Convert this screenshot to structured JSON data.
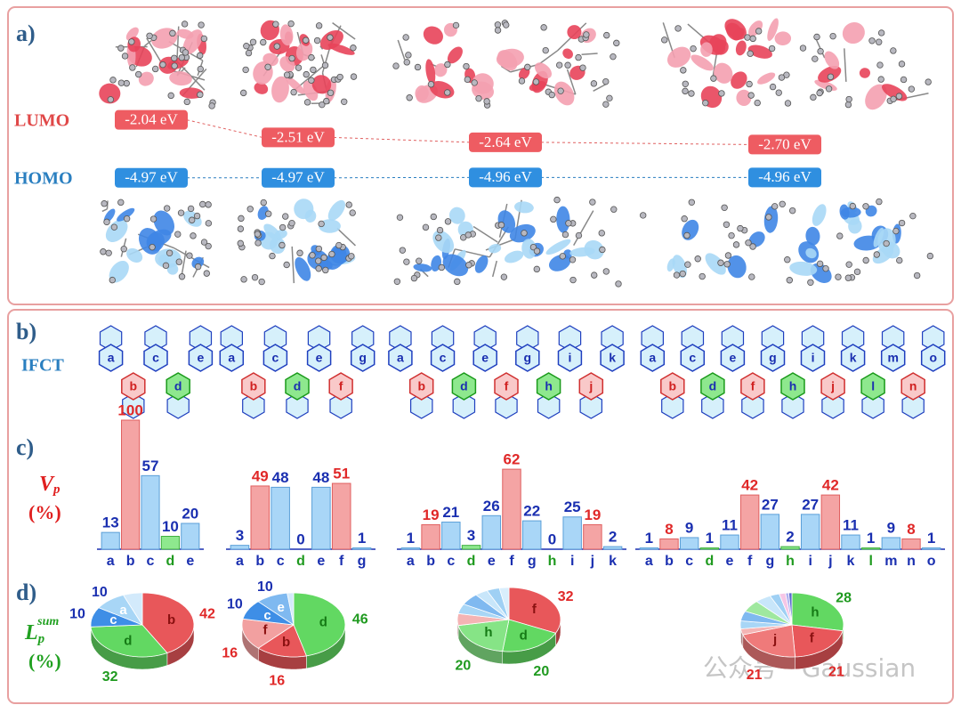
{
  "figure": {
    "panel_a": {
      "label": "a)",
      "lumo_label": "LUMO",
      "homo_label": "HOMO",
      "lumo": {
        "values": [
          -2.04,
          -2.51,
          -2.64,
          -2.7
        ],
        "value_labels": [
          "-2.04 eV",
          "-2.51 eV",
          "-2.64 eV",
          "-2.70 eV"
        ]
      },
      "homo": {
        "values": [
          -4.97,
          -4.97,
          -4.96,
          -4.96
        ],
        "value_labels": [
          "-4.97 eV",
          "-4.97 eV",
          "-4.96 eV",
          "-4.96 eV"
        ]
      }
    },
    "panel_b": {
      "label": "b)",
      "row_label": "IFCT"
    },
    "panel_c": {
      "label": "c)",
      "y_label": "V",
      "y_label_sub": "p",
      "y_unit": "(%)"
    },
    "panel_d": {
      "label": "d)",
      "y_label": "L",
      "y_label_sub": "p",
      "y_label_sup": "sum",
      "y_unit": "(%)"
    },
    "watermark": "公众号 · Gaussian"
  },
  "chart_data": [
    {
      "type": "bar",
      "categories": [
        "a",
        "b",
        "c",
        "d",
        "e"
      ],
      "values": [
        13,
        100,
        57,
        10,
        20
      ],
      "colors": [
        "#a9d6f7",
        "#f4a4a4",
        "#a9d6f7",
        "#8ee88e",
        "#a9d6f7"
      ]
    },
    {
      "type": "bar",
      "categories": [
        "a",
        "b",
        "c",
        "d",
        "e",
        "f",
        "g"
      ],
      "values": [
        3,
        49,
        48,
        0,
        48,
        51,
        1
      ],
      "colors": [
        "#a9d6f7",
        "#f4a4a4",
        "#a9d6f7",
        "#8ee88e",
        "#a9d6f7",
        "#f4a4a4",
        "#a9d6f7"
      ]
    },
    {
      "type": "bar",
      "categories": [
        "a",
        "b",
        "c",
        "d",
        "e",
        "f",
        "g",
        "h",
        "i",
        "j",
        "k"
      ],
      "values": [
        1,
        19,
        21,
        3,
        26,
        62,
        22,
        0,
        25,
        19,
        2
      ],
      "colors": [
        "#a9d6f7",
        "#f4a4a4",
        "#a9d6f7",
        "#8ee88e",
        "#a9d6f7",
        "#f4a4a4",
        "#a9d6f7",
        "#8ee88e",
        "#a9d6f7",
        "#f4a4a4",
        "#a9d6f7"
      ]
    },
    {
      "type": "bar",
      "categories": [
        "a",
        "b",
        "c",
        "d",
        "e",
        "f",
        "g",
        "h",
        "i",
        "j",
        "k",
        "l",
        "m",
        "n",
        "o"
      ],
      "values": [
        1,
        8,
        9,
        1,
        11,
        42,
        27,
        2,
        27,
        42,
        11,
        1,
        9,
        8,
        1
      ],
      "colors": [
        "#a9d6f7",
        "#f4a4a4",
        "#a9d6f7",
        "#8ee88e",
        "#a9d6f7",
        "#f4a4a4",
        "#a9d6f7",
        "#8ee88e",
        "#a9d6f7",
        "#f4a4a4",
        "#a9d6f7",
        "#8ee88e",
        "#a9d6f7",
        "#f4a4a4",
        "#a9d6f7"
      ]
    },
    {
      "type": "pie",
      "categories": [
        "b",
        "d",
        "c",
        "a",
        null
      ],
      "values": [
        42,
        32,
        10,
        10,
        6
      ],
      "value_labels": [
        "42",
        "32",
        "10",
        "10",
        null
      ],
      "colors": [
        "#e8575a",
        "#62d862",
        "#3e8ee6",
        "#a8d6f6",
        "#d3eafb"
      ]
    },
    {
      "type": "pie",
      "categories": [
        "d",
        "b",
        "f",
        "c",
        "e",
        null
      ],
      "values": [
        46,
        16,
        16,
        10,
        10,
        2
      ],
      "value_labels": [
        "46",
        "16",
        "16",
        "10",
        "10",
        null
      ],
      "colors": [
        "#62d862",
        "#e8575a",
        "#f2a0a0",
        "#3e8ee6",
        "#7fb9f0",
        "#d3eafb"
      ]
    },
    {
      "type": "pie",
      "categories": [
        "f",
        "d",
        "h",
        null,
        null,
        null,
        null,
        null,
        null
      ],
      "values": [
        32,
        20,
        20,
        6,
        5,
        6,
        4,
        4,
        3
      ],
      "value_labels": [
        "32",
        "20",
        "20",
        null,
        null,
        null,
        null,
        null,
        null
      ],
      "colors": [
        "#e8575a",
        "#62d862",
        "#86e486",
        "#f4b4b4",
        "#a8d6f6",
        "#7fb9f0",
        "#c8e6fa",
        "#9fd0f4",
        "#d9eefc"
      ]
    },
    {
      "type": "pie",
      "categories": [
        "h",
        "f",
        "j",
        null,
        null,
        null,
        null,
        null,
        null,
        null,
        null,
        null
      ],
      "values": [
        28,
        21,
        21,
        3,
        4,
        5,
        6,
        5,
        3,
        2,
        1,
        1
      ],
      "value_labels": [
        "28",
        "21",
        "21",
        null,
        null,
        null,
        null,
        null,
        null,
        null,
        null,
        null
      ],
      "colors": [
        "#62d862",
        "#e8575a",
        "#ef7a7a",
        "#f4b4b4",
        "#a8d6f6",
        "#7fb9f0",
        "#9fe89f",
        "#c8e6fa",
        "#9fd0f4",
        "#f6c6e6",
        "#b0b0f0",
        "#5a6ad0"
      ]
    }
  ]
}
